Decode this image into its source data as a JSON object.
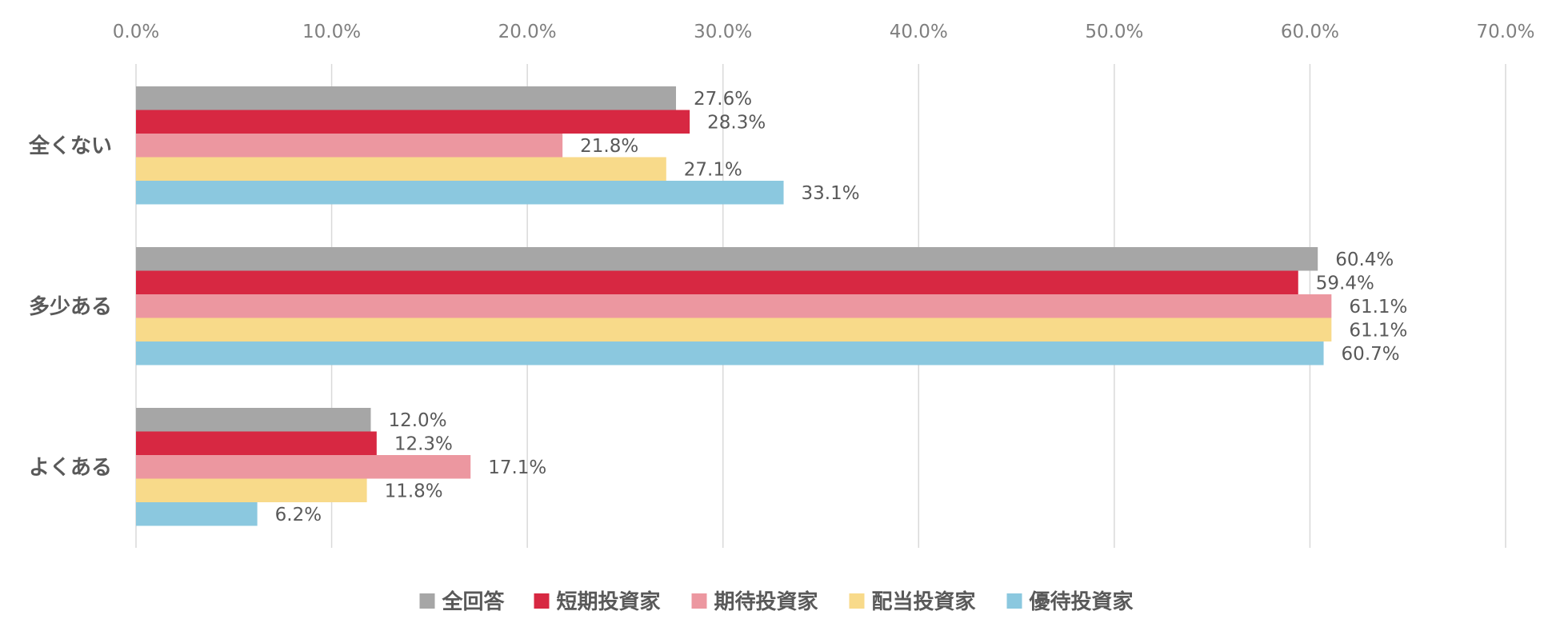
{
  "chart_data": {
    "type": "bar",
    "orientation": "horizontal",
    "categories": [
      "全くない",
      "多少ある",
      "よくある"
    ],
    "series": [
      {
        "name": "全回答",
        "color": "#a6a6a6",
        "values": [
          27.6,
          60.4,
          12.0
        ]
      },
      {
        "name": "短期投資家",
        "color": "#d72842",
        "values": [
          28.3,
          59.4,
          12.3
        ]
      },
      {
        "name": "期待投資家",
        "color": "#ec97a0",
        "values": [
          21.8,
          61.1,
          17.1
        ]
      },
      {
        "name": "配当投資家",
        "color": "#f8da8a",
        "values": [
          27.1,
          61.1,
          11.8
        ]
      },
      {
        "name": "優待投資家",
        "color": "#8bc8df",
        "values": [
          33.1,
          60.7,
          6.2
        ]
      }
    ],
    "xlim": [
      0,
      70
    ],
    "x_ticks": [
      "0.0%",
      "10.0%",
      "20.0%",
      "30.0%",
      "40.0%",
      "50.0%",
      "60.0%",
      "70.0%"
    ],
    "value_format": "percent_1dp",
    "grid": true,
    "axis_position": "top",
    "legend_position": "bottom"
  }
}
